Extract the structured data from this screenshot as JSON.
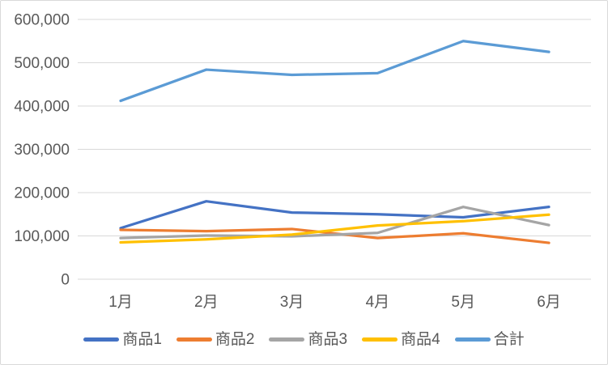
{
  "chart_data": {
    "type": "line",
    "title": "",
    "xlabel": "",
    "ylabel": "",
    "categories": [
      "1月",
      "2月",
      "3月",
      "4月",
      "5月",
      "6月"
    ],
    "series": [
      {
        "name": "商品1",
        "color": "#4472C4",
        "values": [
          118000,
          180000,
          154000,
          150000,
          143000,
          167000
        ]
      },
      {
        "name": "商品2",
        "color": "#ED7D31",
        "values": [
          114000,
          111000,
          116000,
          95000,
          106000,
          84000
        ]
      },
      {
        "name": "商品3",
        "color": "#A5A5A5",
        "values": [
          95000,
          101000,
          99000,
          107000,
          167000,
          125000
        ]
      },
      {
        "name": "商品4",
        "color": "#FFC000",
        "values": [
          85000,
          92000,
          103000,
          124000,
          134000,
          149000
        ]
      },
      {
        "name": "合計",
        "color": "#5B9BD5",
        "values": [
          412000,
          484000,
          472000,
          476000,
          550000,
          525000
        ]
      }
    ],
    "ylim": [
      0,
      600000
    ],
    "ytick_step": 100000,
    "ytick_labels": [
      "0",
      "100,000",
      "200,000",
      "300,000",
      "400,000",
      "500,000",
      "600,000"
    ],
    "grid": true,
    "legend_position": "bottom"
  },
  "colors": {
    "background": "#FFFFFF",
    "border": "#D9D9D9",
    "gridline": "#D9D9D9",
    "axis_text": "#595959",
    "legend_text": "#595959"
  }
}
